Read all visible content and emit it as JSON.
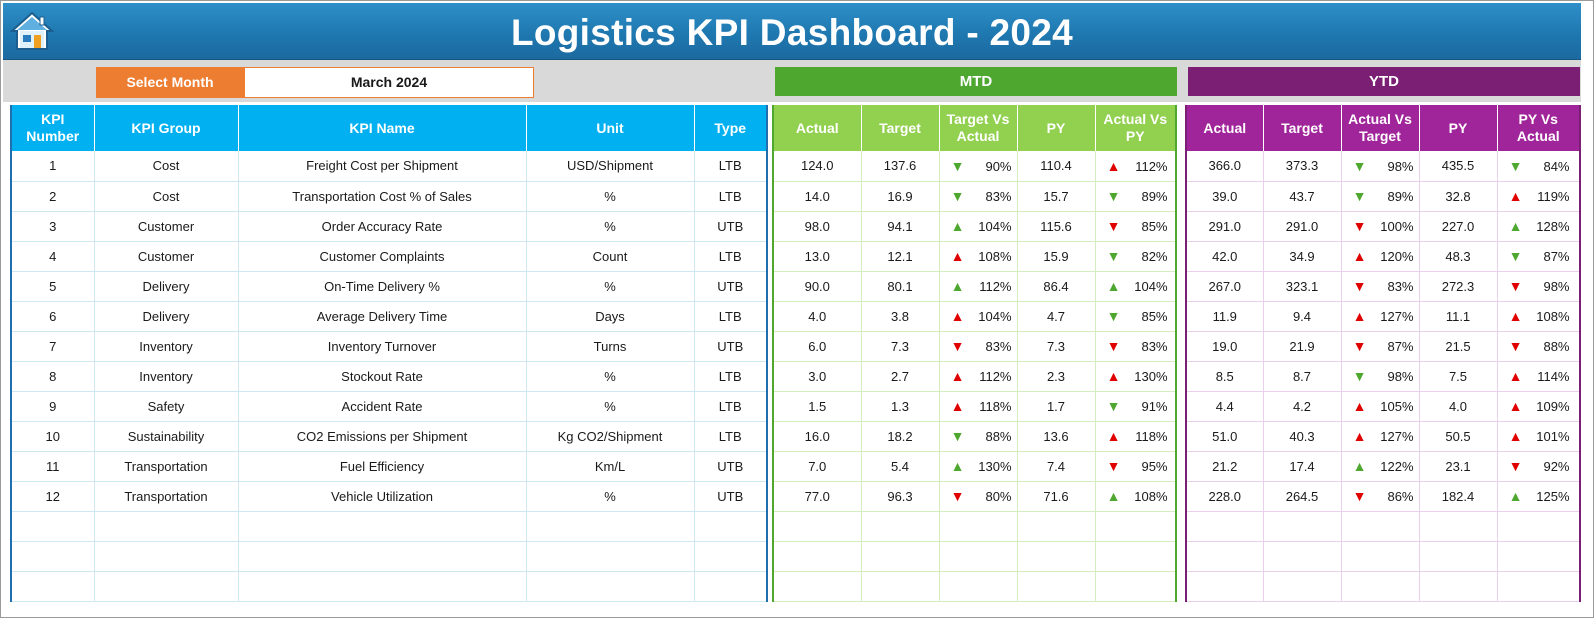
{
  "header": {
    "title": "Logistics KPI Dashboard - 2024",
    "home_icon": "home-icon"
  },
  "filter": {
    "label": "Select Month",
    "value": "March 2024"
  },
  "sections": {
    "mtd": "MTD",
    "ytd": "YTD"
  },
  "kpi_columns": [
    "KPI Number",
    "KPI Group",
    "KPI Name",
    "Unit",
    "Type"
  ],
  "mtd_columns": [
    "Actual",
    "Target",
    "Target Vs Actual",
    "PY",
    "Actual Vs PY"
  ],
  "ytd_columns": [
    "Actual",
    "Target",
    "Actual Vs Target",
    "PY",
    "PY Vs Actual"
  ],
  "colors": {
    "banner": "#1f78b0",
    "select_label": "#ed7d31",
    "mtd": "#4ea72e",
    "ytd": "#7a1f74",
    "kpi_header": "#00b0f0",
    "mtd_header": "#92d050",
    "ytd_header": "#a1259a",
    "up_good": "#4ea72e",
    "down_bad": "#e00000"
  },
  "rows": [
    {
      "num": "1",
      "group": "Cost",
      "name": "Freight Cost per Shipment",
      "unit": "USD/Shipment",
      "type": "LTB",
      "mtd": {
        "actual": "124.0",
        "target": "137.6",
        "tva": {
          "dir": "down",
          "color": "green",
          "pct": "90%"
        },
        "py": "110.4",
        "avp": {
          "dir": "up",
          "color": "red",
          "pct": "112%"
        }
      },
      "ytd": {
        "actual": "366.0",
        "target": "373.3",
        "avt": {
          "dir": "down",
          "color": "green",
          "pct": "98%"
        },
        "py": "435.5",
        "pva": {
          "dir": "down",
          "color": "green",
          "pct": "84%"
        }
      }
    },
    {
      "num": "2",
      "group": "Cost",
      "name": "Transportation Cost % of Sales",
      "unit": "%",
      "type": "LTB",
      "mtd": {
        "actual": "14.0",
        "target": "16.9",
        "tva": {
          "dir": "down",
          "color": "green",
          "pct": "83%"
        },
        "py": "15.7",
        "avp": {
          "dir": "down",
          "color": "green",
          "pct": "89%"
        }
      },
      "ytd": {
        "actual": "39.0",
        "target": "43.7",
        "avt": {
          "dir": "down",
          "color": "green",
          "pct": "89%"
        },
        "py": "32.8",
        "pva": {
          "dir": "up",
          "color": "red",
          "pct": "119%"
        }
      }
    },
    {
      "num": "3",
      "group": "Customer",
      "name": "Order Accuracy Rate",
      "unit": "%",
      "type": "UTB",
      "mtd": {
        "actual": "98.0",
        "target": "94.1",
        "tva": {
          "dir": "up",
          "color": "green",
          "pct": "104%"
        },
        "py": "115.6",
        "avp": {
          "dir": "down",
          "color": "red",
          "pct": "85%"
        }
      },
      "ytd": {
        "actual": "291.0",
        "target": "291.0",
        "avt": {
          "dir": "down",
          "color": "red",
          "pct": "100%"
        },
        "py": "227.0",
        "pva": {
          "dir": "up",
          "color": "green",
          "pct": "128%"
        }
      }
    },
    {
      "num": "4",
      "group": "Customer",
      "name": "Customer Complaints",
      "unit": "Count",
      "type": "LTB",
      "mtd": {
        "actual": "13.0",
        "target": "12.1",
        "tva": {
          "dir": "up",
          "color": "red",
          "pct": "108%"
        },
        "py": "15.9",
        "avp": {
          "dir": "down",
          "color": "green",
          "pct": "82%"
        }
      },
      "ytd": {
        "actual": "42.0",
        "target": "34.9",
        "avt": {
          "dir": "up",
          "color": "red",
          "pct": "120%"
        },
        "py": "48.3",
        "pva": {
          "dir": "down",
          "color": "green",
          "pct": "87%"
        }
      }
    },
    {
      "num": "5",
      "group": "Delivery",
      "name": "On-Time Delivery %",
      "unit": "%",
      "type": "UTB",
      "mtd": {
        "actual": "90.0",
        "target": "80.1",
        "tva": {
          "dir": "up",
          "color": "green",
          "pct": "112%"
        },
        "py": "86.4",
        "avp": {
          "dir": "up",
          "color": "green",
          "pct": "104%"
        }
      },
      "ytd": {
        "actual": "267.0",
        "target": "323.1",
        "avt": {
          "dir": "down",
          "color": "red",
          "pct": "83%"
        },
        "py": "272.3",
        "pva": {
          "dir": "down",
          "color": "red",
          "pct": "98%"
        }
      }
    },
    {
      "num": "6",
      "group": "Delivery",
      "name": "Average Delivery Time",
      "unit": "Days",
      "type": "LTB",
      "mtd": {
        "actual": "4.0",
        "target": "3.8",
        "tva": {
          "dir": "up",
          "color": "red",
          "pct": "104%"
        },
        "py": "4.7",
        "avp": {
          "dir": "down",
          "color": "green",
          "pct": "85%"
        }
      },
      "ytd": {
        "actual": "11.9",
        "target": "9.4",
        "avt": {
          "dir": "up",
          "color": "red",
          "pct": "127%"
        },
        "py": "11.1",
        "pva": {
          "dir": "up",
          "color": "red",
          "pct": "108%"
        }
      }
    },
    {
      "num": "7",
      "group": "Inventory",
      "name": "Inventory Turnover",
      "unit": "Turns",
      "type": "UTB",
      "mtd": {
        "actual": "6.0",
        "target": "7.3",
        "tva": {
          "dir": "down",
          "color": "red",
          "pct": "83%"
        },
        "py": "7.3",
        "avp": {
          "dir": "down",
          "color": "red",
          "pct": "83%"
        }
      },
      "ytd": {
        "actual": "19.0",
        "target": "21.9",
        "avt": {
          "dir": "down",
          "color": "red",
          "pct": "87%"
        },
        "py": "21.5",
        "pva": {
          "dir": "down",
          "color": "red",
          "pct": "88%"
        }
      }
    },
    {
      "num": "8",
      "group": "Inventory",
      "name": "Stockout Rate",
      "unit": "%",
      "type": "LTB",
      "mtd": {
        "actual": "3.0",
        "target": "2.7",
        "tva": {
          "dir": "up",
          "color": "red",
          "pct": "112%"
        },
        "py": "2.3",
        "avp": {
          "dir": "up",
          "color": "red",
          "pct": "130%"
        }
      },
      "ytd": {
        "actual": "8.5",
        "target": "8.7",
        "avt": {
          "dir": "down",
          "color": "green",
          "pct": "98%"
        },
        "py": "7.5",
        "pva": {
          "dir": "up",
          "color": "red",
          "pct": "114%"
        }
      }
    },
    {
      "num": "9",
      "group": "Safety",
      "name": "Accident Rate",
      "unit": "%",
      "type": "LTB",
      "mtd": {
        "actual": "1.5",
        "target": "1.3",
        "tva": {
          "dir": "up",
          "color": "red",
          "pct": "118%"
        },
        "py": "1.7",
        "avp": {
          "dir": "down",
          "color": "green",
          "pct": "91%"
        }
      },
      "ytd": {
        "actual": "4.4",
        "target": "4.2",
        "avt": {
          "dir": "up",
          "color": "red",
          "pct": "105%"
        },
        "py": "4.0",
        "pva": {
          "dir": "up",
          "color": "red",
          "pct": "109%"
        }
      }
    },
    {
      "num": "10",
      "group": "Sustainability",
      "name": "CO2 Emissions per Shipment",
      "unit": "Kg CO2/Shipment",
      "type": "LTB",
      "mtd": {
        "actual": "16.0",
        "target": "18.2",
        "tva": {
          "dir": "down",
          "color": "green",
          "pct": "88%"
        },
        "py": "13.6",
        "avp": {
          "dir": "up",
          "color": "red",
          "pct": "118%"
        }
      },
      "ytd": {
        "actual": "51.0",
        "target": "40.3",
        "avt": {
          "dir": "up",
          "color": "red",
          "pct": "127%"
        },
        "py": "50.5",
        "pva": {
          "dir": "up",
          "color": "red",
          "pct": "101%"
        }
      }
    },
    {
      "num": "11",
      "group": "Transportation",
      "name": "Fuel Efficiency",
      "unit": "Km/L",
      "type": "UTB",
      "mtd": {
        "actual": "7.0",
        "target": "5.4",
        "tva": {
          "dir": "up",
          "color": "green",
          "pct": "130%"
        },
        "py": "7.4",
        "avp": {
          "dir": "down",
          "color": "red",
          "pct": "95%"
        }
      },
      "ytd": {
        "actual": "21.2",
        "target": "17.4",
        "avt": {
          "dir": "up",
          "color": "green",
          "pct": "122%"
        },
        "py": "23.1",
        "pva": {
          "dir": "down",
          "color": "red",
          "pct": "92%"
        }
      }
    },
    {
      "num": "12",
      "group": "Transportation",
      "name": "Vehicle Utilization",
      "unit": "%",
      "type": "UTB",
      "mtd": {
        "actual": "77.0",
        "target": "96.3",
        "tva": {
          "dir": "down",
          "color": "red",
          "pct": "80%"
        },
        "py": "71.6",
        "avp": {
          "dir": "up",
          "color": "green",
          "pct": "108%"
        }
      },
      "ytd": {
        "actual": "228.0",
        "target": "264.5",
        "avt": {
          "dir": "down",
          "color": "red",
          "pct": "86%"
        },
        "py": "182.4",
        "pva": {
          "dir": "up",
          "color": "green",
          "pct": "125%"
        }
      }
    }
  ],
  "empty_rows": 3
}
